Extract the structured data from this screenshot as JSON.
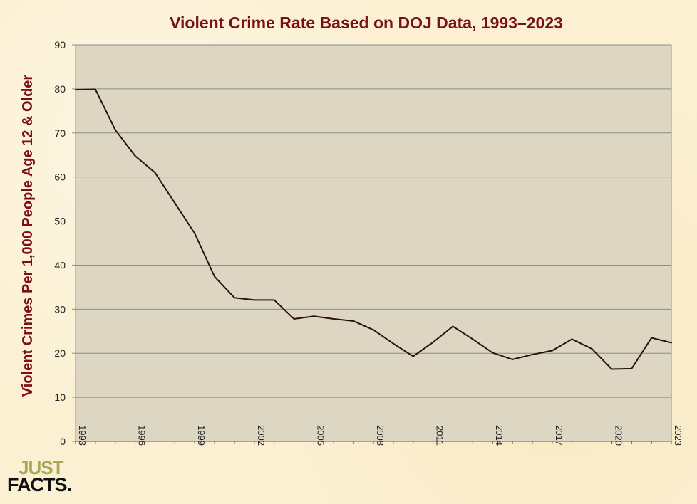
{
  "colors": {
    "title": "#7a0f14",
    "plot_bg": "#ddd6c2",
    "line": "#2b1010",
    "grid": "#8c8c8c",
    "logo_top": "#a7a75a",
    "logo_bottom": "#111111"
  },
  "logo": {
    "line1": "JUST",
    "line2": "FACTS."
  },
  "chart_data": {
    "type": "line",
    "title": "Violent Crime Rate Based on DOJ Data, 1993–2023",
    "ylabel": "Violent Crimes Per 1,000 People Age 12 & Older",
    "xlabel": "",
    "ylim": [
      0,
      90
    ],
    "xlim": [
      1993,
      2023
    ],
    "yticks": [
      0,
      10,
      20,
      30,
      40,
      50,
      60,
      70,
      80,
      90
    ],
    "xticks": [
      1993,
      1996,
      1999,
      2002,
      2005,
      2008,
      2011,
      2014,
      2017,
      2020,
      2023
    ],
    "grid": true,
    "legend": "none",
    "series": [
      {
        "x": [
          1993,
          1994,
          1995,
          1996,
          1997,
          1998,
          1999,
          2000,
          2001,
          2002,
          2003,
          2004,
          2005,
          2006,
          2007,
          2008,
          2009,
          2010,
          2011,
          2012,
          2013,
          2014,
          2015,
          2016,
          2017,
          2018,
          2019,
          2020,
          2021,
          2022,
          2023
        ],
        "values": [
          79.8,
          79.9,
          70.7,
          64.8,
          61.0,
          54.1,
          47.2,
          37.4,
          32.6,
          32.1,
          32.1,
          27.8,
          28.4,
          27.8,
          27.3,
          25.3,
          22.2,
          19.3,
          22.5,
          26.1,
          23.2,
          20.1,
          18.6,
          19.7,
          20.6,
          23.2,
          21.0,
          16.4,
          16.5,
          23.5,
          22.4
        ]
      }
    ]
  }
}
